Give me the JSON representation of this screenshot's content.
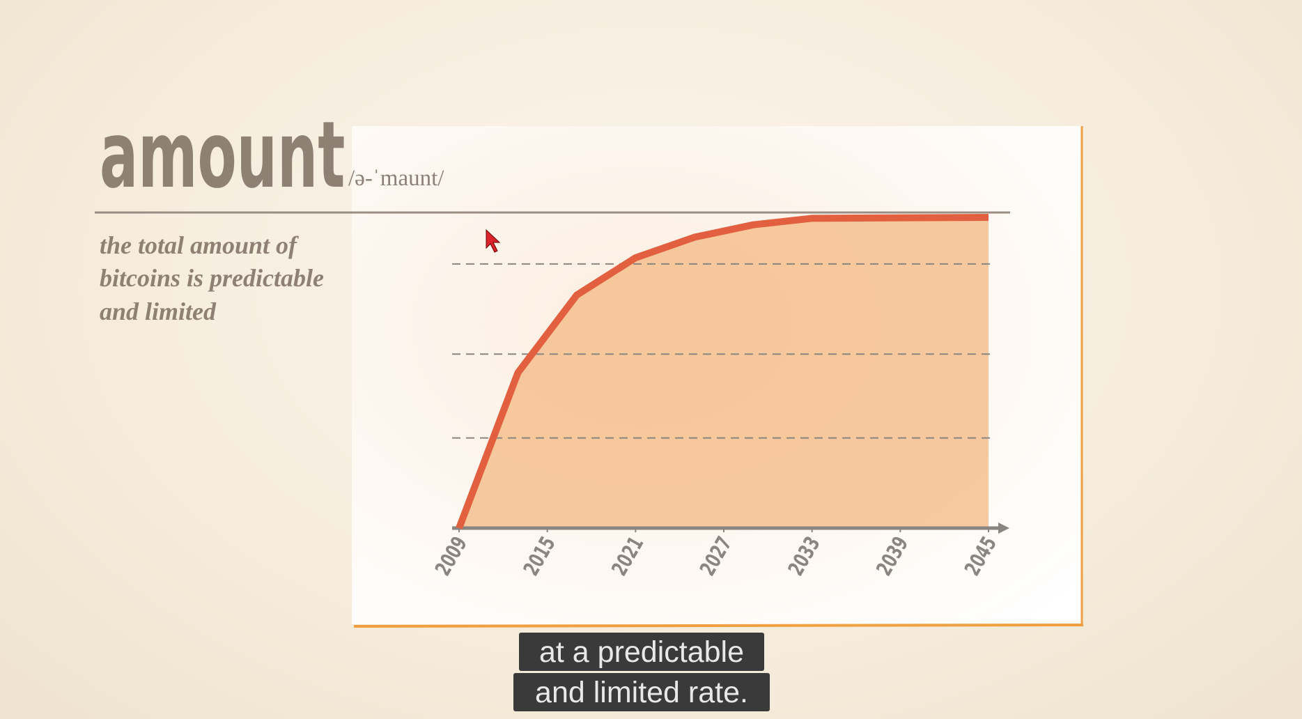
{
  "header": {
    "title": "amount",
    "pronunciation": "/ə-ˈmaunt/"
  },
  "definition": [
    "the total amount of",
    "bitcoins is predictable",
    "and limited"
  ],
  "chart_data": {
    "type": "area",
    "x": [
      2009,
      2013,
      2017,
      2021,
      2025,
      2029,
      2033,
      2045
    ],
    "values": [
      0,
      50,
      75,
      87,
      93.6,
      97.6,
      99.7,
      100
    ],
    "color": "#e2603f",
    "fill": "#f5c08e",
    "xlim": [
      2009,
      2045
    ],
    "xticks": [
      2009,
      2015,
      2021,
      2027,
      2033,
      2039,
      2045
    ],
    "ylim": [
      0,
      100
    ],
    "yticks": [
      29,
      56,
      85
    ],
    "grid": true
  },
  "captions": [
    "at a predictable",
    "and limited rate."
  ]
}
